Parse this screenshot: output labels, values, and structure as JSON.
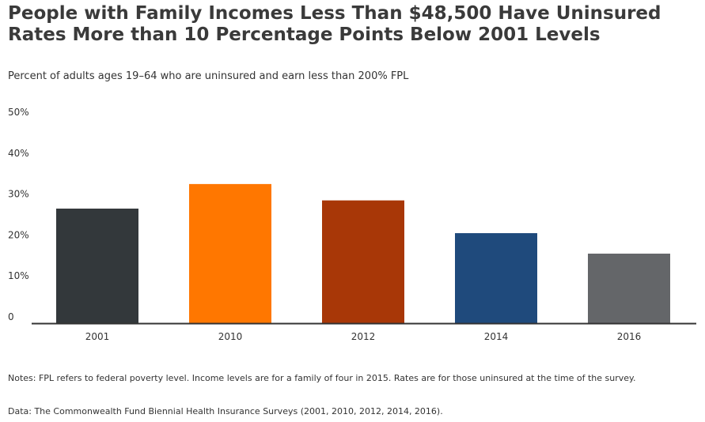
{
  "chart_data": {
    "type": "bar",
    "title": "People with Family Incomes Less Than $48,500 Have Uninsured Rates More than 10 Percentage Points Below 2001 Levels",
    "subtitle": "Percent of adults ages 19–64 who are uninsured and earn less than 200% FPL",
    "categories": [
      "2001",
      "2010",
      "2012",
      "2014",
      "2016"
    ],
    "values": [
      28,
      34,
      30,
      22,
      17
    ],
    "colors": [
      "#33383b",
      "#ff7700",
      "#a83707",
      "#1f4a7c",
      "#646669"
    ],
    "ylim": [
      0,
      50
    ],
    "yticks": [
      0,
      10,
      20,
      30,
      40,
      50
    ],
    "ytick_labels": [
      "0",
      "10%",
      "20%",
      "30%",
      "40%",
      "50%"
    ],
    "xlabel": "",
    "ylabel": "",
    "grid": false
  },
  "notes": {
    "notes_text": "Notes: FPL refers to federal poverty level. Income levels are for a family of four in 2015. Rates are for those uninsured at the time of the survey.",
    "data_text": "Data: The Commonwealth Fund Biennial Health Insurance Surveys (2001, 2010, 2012, 2014, 2016)."
  }
}
